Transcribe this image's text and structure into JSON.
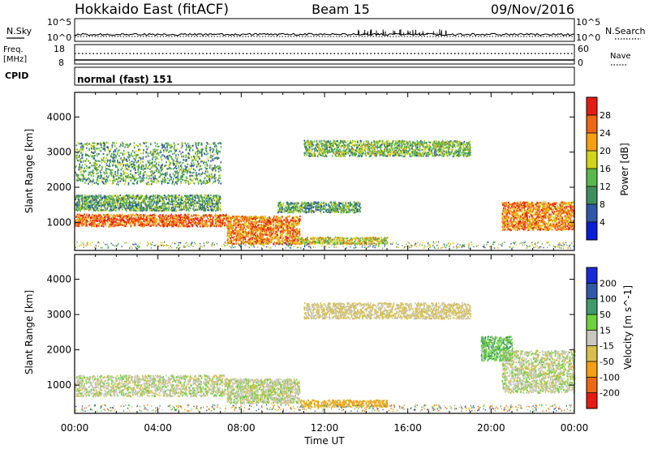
{
  "header": {
    "station": "Hokkaido East (fitACF)",
    "beam": "Beam 15",
    "date": "09/Nov/2016"
  },
  "strips": {
    "nsky_label": "N.Sky",
    "nsearch_label": "N.Search",
    "noise_ticks": [
      "10^5",
      "10^0"
    ],
    "freq_label_1": "Freq.",
    "freq_label_2": "[MHz]",
    "freq_ticks": [
      "18",
      "8"
    ],
    "nave_label": "Nave",
    "nave_ticks": [
      "60",
      "0"
    ],
    "cpid_label": "CPID",
    "cpid_value": "normal (fast) 151"
  },
  "colors": {
    "power": [
      "#0a1dd9",
      "#2f57a8",
      "#3f8f5e",
      "#58b84b",
      "#d2d41a",
      "#f4a010",
      "#f06612",
      "#e81a14"
    ],
    "velocity": [
      "#e81a14",
      "#f06612",
      "#f4a010",
      "#d9bf4a",
      "#c8c8c0",
      "#6dd13a",
      "#3f9a6a",
      "#2f58a8",
      "#1a2ad9"
    ]
  },
  "chart_data": [
    {
      "type": "heatmap",
      "ylabel": "Slant Range [km]",
      "xlabel": "",
      "x_range": [
        "00:00",
        "24:00"
      ],
      "xticks": [
        "00:00",
        "04:00",
        "08:00",
        "12:00",
        "16:00",
        "20:00",
        "00:00"
      ],
      "yticks": [
        "1000",
        "2000",
        "3000",
        "4000"
      ],
      "ylim": [
        200,
        4700
      ],
      "colorbar": {
        "label": "Power [dB]",
        "ticks": [
          "28",
          "24",
          "20",
          "16",
          "12",
          "8",
          "4"
        ],
        "range": [
          0,
          32
        ]
      },
      "features": [
        {
          "x": [
            0,
            7.3
          ],
          "y": [
            900,
            1250
          ],
          "value": 26
        },
        {
          "x": [
            0,
            7
          ],
          "y": [
            1350,
            1800
          ],
          "value": 12
        },
        {
          "x": [
            7.3,
            10.8
          ],
          "y": [
            400,
            1200
          ],
          "value": 24
        },
        {
          "x": [
            10.8,
            15
          ],
          "y": [
            400,
            600
          ],
          "value": 18
        },
        {
          "x": [
            9.7,
            13.7
          ],
          "y": [
            1300,
            1600
          ],
          "value": 12
        },
        {
          "x": [
            20.5,
            24
          ],
          "y": [
            800,
            1600
          ],
          "value": 24
        },
        {
          "x": [
            11,
            19
          ],
          "y": [
            2900,
            3350
          ],
          "value": 14
        },
        {
          "x": [
            0,
            7
          ],
          "y": [
            2100,
            3300
          ],
          "value": 12
        }
      ]
    },
    {
      "type": "heatmap",
      "ylabel": "Slant Range [km]",
      "xlabel": "Time UT",
      "x_range": [
        "00:00",
        "24:00"
      ],
      "xticks": [
        "00:00",
        "04:00",
        "08:00",
        "12:00",
        "16:00",
        "20:00",
        "00:00"
      ],
      "yticks": [
        "1000",
        "2000",
        "3000",
        "4000"
      ],
      "ylim": [
        200,
        4700
      ],
      "colorbar": {
        "label": "Velocity [m s^-1]",
        "ticks": [
          "200",
          "100",
          "50",
          "15",
          "-15",
          "-50",
          "-100",
          "-200"
        ],
        "range": [
          -250,
          250
        ]
      },
      "features": [
        {
          "x": [
            0,
            7.3
          ],
          "y": [
            700,
            1300
          ],
          "value": 0
        },
        {
          "x": [
            7.3,
            10.8
          ],
          "y": [
            500,
            1200
          ],
          "value": 0
        },
        {
          "x": [
            10.8,
            15
          ],
          "y": [
            400,
            600
          ],
          "value": -60
        },
        {
          "x": [
            19.5,
            21
          ],
          "y": [
            1700,
            2400
          ],
          "value": 40
        },
        {
          "x": [
            20.5,
            24
          ],
          "y": [
            800,
            2000
          ],
          "value": 0
        },
        {
          "x": [
            11,
            19
          ],
          "y": [
            2900,
            3350
          ],
          "value": -20
        }
      ]
    }
  ]
}
